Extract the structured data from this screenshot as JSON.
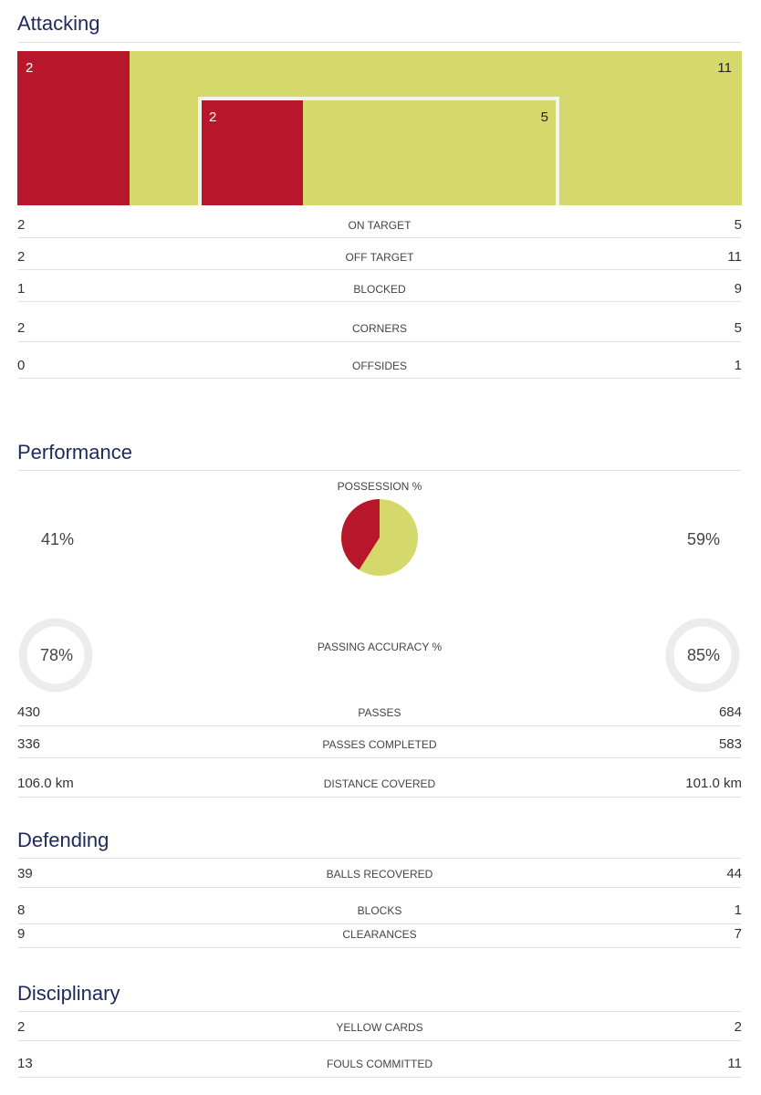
{
  "colors": {
    "home": "#b8162b",
    "away": "#d5d96b",
    "title": "#1d2a5b"
  },
  "attacking": {
    "title": "Attacking",
    "graphic": {
      "home_total": "2",
      "away_total": "11",
      "home_on_target": "2",
      "away_on_target": "5"
    },
    "rows": [
      {
        "left": "2",
        "label": "ON TARGET",
        "right": "5"
      },
      {
        "left": "2",
        "label": "OFF TARGET",
        "right": "11"
      },
      {
        "left": "1",
        "label": "BLOCKED",
        "right": "9"
      },
      {
        "left": "2",
        "label": "CORNERS",
        "right": "5"
      },
      {
        "left": "0",
        "label": "OFFSIDES",
        "right": "1"
      }
    ]
  },
  "performance": {
    "title": "Performance",
    "possession": {
      "label": "POSSESSION %",
      "home": "41%",
      "away": "59%",
      "home_value": 41,
      "away_value": 59
    },
    "passing_accuracy": {
      "label": "PASSING ACCURACY %",
      "home": "78%",
      "away": "85%",
      "home_value": 78,
      "away_value": 85
    },
    "rows": [
      {
        "left": "430",
        "label": "PASSES",
        "right": "684"
      },
      {
        "left": "336",
        "label": "PASSES COMPLETED",
        "right": "583"
      },
      {
        "left": "106.0 km",
        "label": "DISTANCE COVERED",
        "right": "101.0 km"
      }
    ]
  },
  "defending": {
    "title": "Defending",
    "rows": [
      {
        "left": "39",
        "label": "BALLS RECOVERED",
        "right": "44"
      },
      {
        "left": "8",
        "label": "BLOCKS",
        "right": "1"
      },
      {
        "left": "9",
        "label": "CLEARANCES",
        "right": "7"
      }
    ]
  },
  "disciplinary": {
    "title": "Disciplinary",
    "rows": [
      {
        "left": "2",
        "label": "YELLOW CARDS",
        "right": "2"
      },
      {
        "left": "13",
        "label": "FOULS COMMITTED",
        "right": "11"
      }
    ]
  }
}
